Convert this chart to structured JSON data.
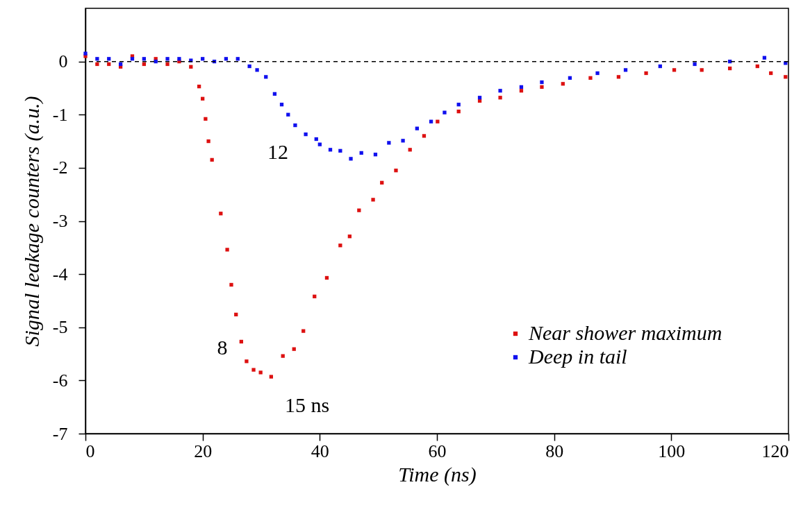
{
  "chart_data": {
    "type": "scatter",
    "xlabel": "Time (ns)",
    "ylabel": "Signal leakage counters (a.u.)",
    "xlim": [
      0,
      120
    ],
    "ylim": [
      -7,
      1
    ],
    "xticks": [
      0,
      20,
      40,
      60,
      80,
      100,
      120
    ],
    "yticks": [
      0,
      -1,
      -2,
      -3,
      -4,
      -5,
      -6,
      -7
    ],
    "marker": "square",
    "legend": "bottom right",
    "series": [
      {
        "name": "Near shower maximum",
        "color": "#dd1111",
        "x": [
          0,
          2,
          4,
          6,
          8,
          10,
          12,
          14,
          16,
          18,
          19.4,
          20,
          20.5,
          21,
          21.6,
          23.1,
          24.2,
          24.9,
          25.7,
          26.6,
          27.5,
          28.7,
          29.9,
          31.7,
          33.7,
          35.6,
          37.2,
          39.1,
          41.2,
          43.5,
          45.1,
          46.7,
          49.1,
          50.6,
          53,
          55.4,
          57.8,
          60.1,
          63.7,
          67.3,
          70.8,
          74.4,
          77.9,
          81.5,
          86.2,
          91,
          95.7,
          100.5,
          105.2,
          110,
          114.7,
          117,
          119.5
        ],
        "values": [
          0.1,
          -0.05,
          -0.05,
          -0.1,
          0.1,
          -0.05,
          0.05,
          -0.05,
          0,
          -0.1,
          -0.47,
          -0.7,
          -1.08,
          -1.5,
          -1.85,
          -2.86,
          -3.54,
          -4.2,
          -4.76,
          -5.27,
          -5.64,
          -5.8,
          -5.85,
          -5.93,
          -5.54,
          -5.41,
          -5.07,
          -4.42,
          -4.07,
          -3.46,
          -3.29,
          -2.8,
          -2.6,
          -2.28,
          -2.05,
          -1.66,
          -1.4,
          -1.13,
          -0.94,
          -0.74,
          -0.68,
          -0.55,
          -0.48,
          -0.42,
          -0.31,
          -0.29,
          -0.22,
          -0.16,
          -0.16,
          -0.13,
          -0.09,
          -0.22,
          -0.29
        ]
      },
      {
        "name": "Deep in tail",
        "color": "#1111ee",
        "x": [
          0,
          2,
          4,
          6,
          8,
          10,
          12,
          14,
          16,
          18,
          20,
          22,
          24,
          26,
          28,
          29.3,
          30.8,
          32.3,
          33.5,
          34.6,
          35.8,
          37.6,
          39.4,
          40,
          41.8,
          43.5,
          45.3,
          47.1,
          49.5,
          51.8,
          54.2,
          56.6,
          59,
          61.3,
          63.7,
          67.3,
          70.8,
          74.4,
          77.9,
          82.7,
          87.4,
          92.2,
          98.1,
          104,
          110,
          115.9,
          119.5
        ],
        "values": [
          0.15,
          0.05,
          0.05,
          -0.05,
          0.05,
          0.05,
          0,
          0.05,
          0.05,
          0.02,
          0.05,
          0,
          0.05,
          0.05,
          -0.09,
          -0.16,
          -0.29,
          -0.61,
          -0.81,
          -1,
          -1.2,
          -1.37,
          -1.46,
          -1.56,
          -1.66,
          -1.68,
          -1.83,
          -1.72,
          -1.75,
          -1.53,
          -1.49,
          -1.26,
          -1.13,
          -0.96,
          -0.81,
          -0.68,
          -0.55,
          -0.48,
          -0.39,
          -0.31,
          -0.22,
          -0.16,
          -0.09,
          -0.05,
          0,
          0.07,
          -0.03
        ]
      }
    ],
    "ref_lines": [
      {
        "axis": "y",
        "value": 0,
        "color": "#000000",
        "line_style": "dashed"
      }
    ],
    "annotations": [
      "12",
      "8",
      "15 ns"
    ]
  }
}
